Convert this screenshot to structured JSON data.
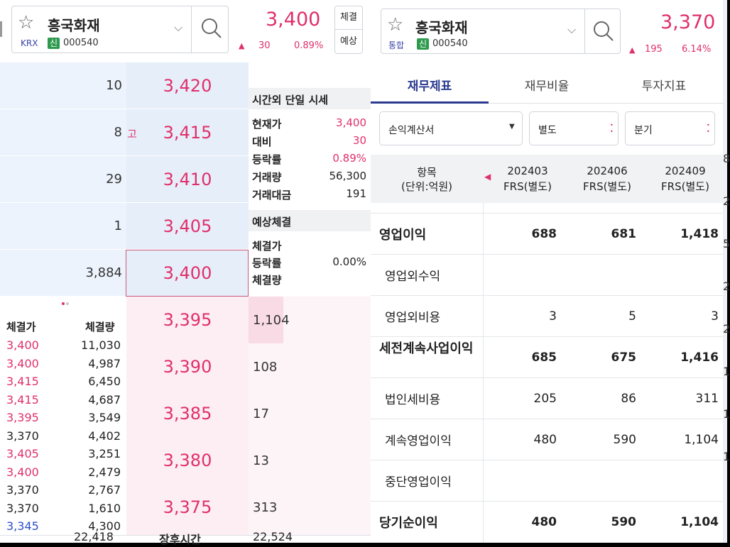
{
  "left": {
    "header": {
      "stock_name": "흥국화재",
      "market": "KRX",
      "shin": "신",
      "code": "000540",
      "price": "3,400",
      "arrow": "▲",
      "change": "30",
      "rate": "0.89%",
      "btn_trade": "체결",
      "btn_expect": "예상"
    },
    "ask_rows": [
      {
        "qty": "10",
        "mark": "",
        "price": "3,420"
      },
      {
        "qty": "8",
        "mark": "고",
        "price": "3,415"
      },
      {
        "qty": "29",
        "mark": "",
        "price": "3,410"
      },
      {
        "qty": "1",
        "mark": "",
        "price": "3,405"
      },
      {
        "qty": "3,884",
        "mark": "",
        "price": "3,400"
      }
    ],
    "bid_rows": [
      {
        "price": "3,395",
        "qty": "1,104"
      },
      {
        "price": "3,390",
        "qty": "108"
      },
      {
        "price": "3,385",
        "qty": "17"
      },
      {
        "price": "3,380",
        "qty": "13"
      },
      {
        "price": "3,375",
        "qty": "313"
      }
    ],
    "after_hours": {
      "title": "시간외 단일 시세",
      "rows": [
        {
          "label": "현재가",
          "value": "3,400",
          "color": "red"
        },
        {
          "label": "대비",
          "value": "30",
          "color": "red"
        },
        {
          "label": "등락률",
          "value": "0.89%",
          "color": "red"
        },
        {
          "label": "거래량",
          "value": "56,300",
          "color": "black"
        },
        {
          "label": "거래대금",
          "value": "191",
          "color": "black"
        }
      ]
    },
    "expected": {
      "title": "예상체결",
      "rows": [
        {
          "label": "체결가",
          "value": ""
        },
        {
          "label": "등락률",
          "value": "0.00%"
        },
        {
          "label": "체결량",
          "value": ""
        }
      ]
    },
    "trades": {
      "col_price": "체결가",
      "col_qty": "체결량",
      "rows": [
        {
          "price": "3,400",
          "qty": "11,030",
          "color": "red"
        },
        {
          "price": "3,400",
          "qty": "4,987",
          "color": "red"
        },
        {
          "price": "3,415",
          "qty": "6,450",
          "color": "red"
        },
        {
          "price": "3,415",
          "qty": "4,687",
          "color": "red"
        },
        {
          "price": "3,395",
          "qty": "3,549",
          "color": "red"
        },
        {
          "price": "3,370",
          "qty": "4,402",
          "color": "black"
        },
        {
          "price": "3,405",
          "qty": "3,251",
          "color": "red"
        },
        {
          "price": "3,400",
          "qty": "2,479",
          "color": "red"
        },
        {
          "price": "3,370",
          "qty": "2,767",
          "color": "black"
        },
        {
          "price": "3,370",
          "qty": "1,610",
          "color": "black"
        },
        {
          "price": "3,345",
          "qty": "4,300",
          "color": "blue"
        }
      ]
    },
    "footer": {
      "left_total": "22,418",
      "label": "장후시간",
      "right_total": "22,524"
    }
  },
  "right": {
    "header": {
      "stock_name": "흥국화재",
      "market": "통합",
      "shin": "신",
      "code": "000540",
      "price": "3,370",
      "arrow": "▲",
      "change": "195",
      "rate": "6.14%"
    },
    "tabs": [
      "재무제표",
      "재무비율",
      "투자지표"
    ],
    "filters": {
      "statement": "손익계산서",
      "basis": "별도",
      "period": "분기"
    },
    "table": {
      "head_label": "항목",
      "head_unit": "(단위:억원)",
      "columns": [
        {
          "period": "202403",
          "std": "FRS(별도)"
        },
        {
          "period": "202406",
          "std": "FRS(별도)"
        },
        {
          "period": "202409",
          "std": "FRS(별도)"
        }
      ],
      "rows": [
        {
          "label": "영업이익",
          "bold": true,
          "values": [
            "688",
            "681",
            "1,418"
          ]
        },
        {
          "label": "영업외수익",
          "bold": false,
          "values": [
            "",
            "",
            ""
          ]
        },
        {
          "label": "영업외비용",
          "bold": false,
          "values": [
            "3",
            "5",
            "3"
          ]
        },
        {
          "label": "세전계속사업이익",
          "bold": true,
          "values": [
            "685",
            "675",
            "1,416"
          ]
        },
        {
          "label": "법인세비용",
          "bold": false,
          "values": [
            "205",
            "86",
            "311"
          ]
        },
        {
          "label": "계속영업이익",
          "bold": false,
          "values": [
            "480",
            "590",
            "1,104"
          ]
        },
        {
          "label": "중단영업이익",
          "bold": false,
          "values": [
            "",
            "",
            ""
          ]
        },
        {
          "label": "당기순이익",
          "bold": true,
          "values": [
            "480",
            "590",
            "1,104"
          ]
        }
      ]
    },
    "edge_digits": [
      "8",
      "2",
      "5",
      "2",
      "2",
      "1",
      "1",
      "1"
    ]
  },
  "colors": {
    "up": "#e0306a",
    "down": "#2a4ec8",
    "ask_bg": "#eaf1fb",
    "bid_bg": "#fdeef3",
    "accent": "#2b3a8f"
  }
}
